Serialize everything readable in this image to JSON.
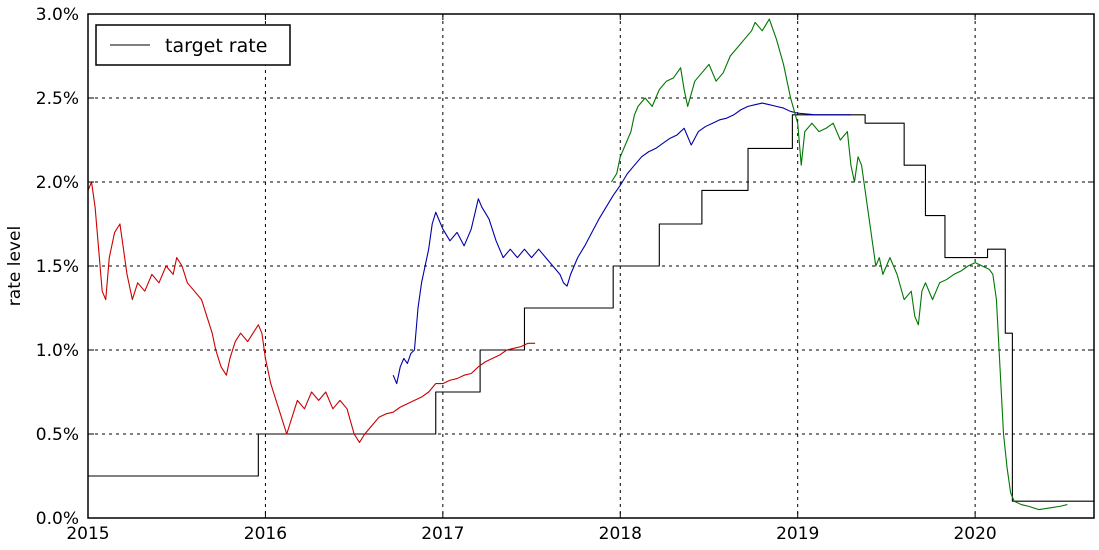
{
  "chart_data": {
    "type": "line",
    "title": "",
    "xlabel": "",
    "ylabel": "rate level",
    "xlim": [
      2015.0,
      2020.67
    ],
    "ylim": [
      0.0,
      3.0
    ],
    "grid": true,
    "legend_position": "top-left",
    "x_ticks": [
      {
        "value": 2015,
        "label": "2015"
      },
      {
        "value": 2016,
        "label": "2016"
      },
      {
        "value": 2017,
        "label": "2017"
      },
      {
        "value": 2018,
        "label": "2018"
      },
      {
        "value": 2019,
        "label": "2019"
      },
      {
        "value": 2020,
        "label": "2020"
      }
    ],
    "y_ticks": [
      {
        "value": 0.0,
        "label": "0.0%"
      },
      {
        "value": 0.5,
        "label": "0.5%"
      },
      {
        "value": 1.0,
        "label": "1.0%"
      },
      {
        "value": 1.5,
        "label": "1.5%"
      },
      {
        "value": 2.0,
        "label": "2.0%"
      },
      {
        "value": 2.5,
        "label": "2.5%"
      },
      {
        "value": 3.0,
        "label": "3.0%"
      }
    ],
    "series": [
      {
        "name": "target rate",
        "color": "#000000",
        "style": "step",
        "points": [
          [
            2015.0,
            0.25
          ],
          [
            2015.96,
            0.25
          ],
          [
            2015.96,
            0.5
          ],
          [
            2016.96,
            0.5
          ],
          [
            2016.96,
            0.75
          ],
          [
            2017.21,
            0.75
          ],
          [
            2017.21,
            1.0
          ],
          [
            2017.46,
            1.0
          ],
          [
            2017.46,
            1.25
          ],
          [
            2017.96,
            1.25
          ],
          [
            2017.96,
            1.5
          ],
          [
            2018.22,
            1.5
          ],
          [
            2018.22,
            1.75
          ],
          [
            2018.46,
            1.75
          ],
          [
            2018.46,
            1.95
          ],
          [
            2018.72,
            1.95
          ],
          [
            2018.72,
            2.2
          ],
          [
            2018.97,
            2.2
          ],
          [
            2018.97,
            2.4
          ],
          [
            2019.38,
            2.4
          ],
          [
            2019.38,
            2.35
          ],
          [
            2019.6,
            2.35
          ],
          [
            2019.6,
            2.1
          ],
          [
            2019.72,
            2.1
          ],
          [
            2019.72,
            1.8
          ],
          [
            2019.83,
            1.8
          ],
          [
            2019.83,
            1.55
          ],
          [
            2020.07,
            1.55
          ],
          [
            2020.07,
            1.6
          ],
          [
            2020.17,
            1.6
          ],
          [
            2020.17,
            1.1
          ],
          [
            2020.21,
            1.1
          ],
          [
            2020.21,
            0.1
          ],
          [
            2020.67,
            0.1
          ]
        ]
      },
      {
        "name": "",
        "color": "#cc0000",
        "style": "line",
        "points": [
          [
            2015.0,
            1.95
          ],
          [
            2015.02,
            2.0
          ],
          [
            2015.04,
            1.85
          ],
          [
            2015.06,
            1.6
          ],
          [
            2015.08,
            1.35
          ],
          [
            2015.1,
            1.3
          ],
          [
            2015.12,
            1.55
          ],
          [
            2015.15,
            1.7
          ],
          [
            2015.18,
            1.75
          ],
          [
            2015.2,
            1.6
          ],
          [
            2015.22,
            1.45
          ],
          [
            2015.25,
            1.3
          ],
          [
            2015.28,
            1.4
          ],
          [
            2015.32,
            1.35
          ],
          [
            2015.36,
            1.45
          ],
          [
            2015.4,
            1.4
          ],
          [
            2015.44,
            1.5
          ],
          [
            2015.48,
            1.45
          ],
          [
            2015.5,
            1.55
          ],
          [
            2015.53,
            1.5
          ],
          [
            2015.56,
            1.4
          ],
          [
            2015.6,
            1.35
          ],
          [
            2015.64,
            1.3
          ],
          [
            2015.67,
            1.2
          ],
          [
            2015.7,
            1.1
          ],
          [
            2015.72,
            1.0
          ],
          [
            2015.75,
            0.9
          ],
          [
            2015.78,
            0.85
          ],
          [
            2015.8,
            0.95
          ],
          [
            2015.83,
            1.05
          ],
          [
            2015.86,
            1.1
          ],
          [
            2015.9,
            1.05
          ],
          [
            2015.93,
            1.1
          ],
          [
            2015.96,
            1.15
          ],
          [
            2015.98,
            1.1
          ],
          [
            2016.0,
            0.95
          ],
          [
            2016.03,
            0.8
          ],
          [
            2016.06,
            0.7
          ],
          [
            2016.09,
            0.6
          ],
          [
            2016.12,
            0.5
          ],
          [
            2016.15,
            0.6
          ],
          [
            2016.18,
            0.7
          ],
          [
            2016.22,
            0.65
          ],
          [
            2016.26,
            0.75
          ],
          [
            2016.3,
            0.7
          ],
          [
            2016.34,
            0.75
          ],
          [
            2016.38,
            0.65
          ],
          [
            2016.42,
            0.7
          ],
          [
            2016.46,
            0.65
          ],
          [
            2016.5,
            0.5
          ],
          [
            2016.53,
            0.45
          ],
          [
            2016.56,
            0.5
          ],
          [
            2016.6,
            0.55
          ],
          [
            2016.64,
            0.6
          ],
          [
            2016.68,
            0.62
          ],
          [
            2016.72,
            0.63
          ],
          [
            2016.76,
            0.66
          ],
          [
            2016.8,
            0.68
          ],
          [
            2016.84,
            0.7
          ],
          [
            2016.88,
            0.72
          ],
          [
            2016.92,
            0.75
          ],
          [
            2016.96,
            0.8
          ],
          [
            2017.0,
            0.8
          ],
          [
            2017.04,
            0.82
          ],
          [
            2017.08,
            0.83
          ],
          [
            2017.12,
            0.85
          ],
          [
            2017.16,
            0.86
          ],
          [
            2017.2,
            0.9
          ],
          [
            2017.24,
            0.93
          ],
          [
            2017.28,
            0.95
          ],
          [
            2017.32,
            0.97
          ],
          [
            2017.36,
            1.0
          ],
          [
            2017.4,
            1.01
          ],
          [
            2017.44,
            1.02
          ],
          [
            2017.48,
            1.04
          ],
          [
            2017.52,
            1.04
          ]
        ]
      },
      {
        "name": "",
        "color": "#0000aa",
        "style": "line",
        "points": [
          [
            2016.72,
            0.85
          ],
          [
            2016.74,
            0.8
          ],
          [
            2016.76,
            0.9
          ],
          [
            2016.78,
            0.95
          ],
          [
            2016.8,
            0.92
          ],
          [
            2016.82,
            0.98
          ],
          [
            2016.84,
            1.0
          ],
          [
            2016.86,
            1.25
          ],
          [
            2016.88,
            1.4
          ],
          [
            2016.9,
            1.5
          ],
          [
            2016.92,
            1.6
          ],
          [
            2016.94,
            1.75
          ],
          [
            2016.96,
            1.82
          ],
          [
            2017.0,
            1.72
          ],
          [
            2017.04,
            1.65
          ],
          [
            2017.08,
            1.7
          ],
          [
            2017.12,
            1.62
          ],
          [
            2017.16,
            1.72
          ],
          [
            2017.2,
            1.9
          ],
          [
            2017.22,
            1.85
          ],
          [
            2017.26,
            1.78
          ],
          [
            2017.3,
            1.65
          ],
          [
            2017.34,
            1.55
          ],
          [
            2017.38,
            1.6
          ],
          [
            2017.42,
            1.55
          ],
          [
            2017.46,
            1.6
          ],
          [
            2017.5,
            1.55
          ],
          [
            2017.54,
            1.6
          ],
          [
            2017.58,
            1.55
          ],
          [
            2017.62,
            1.5
          ],
          [
            2017.66,
            1.45
          ],
          [
            2017.68,
            1.4
          ],
          [
            2017.7,
            1.38
          ],
          [
            2017.72,
            1.45
          ],
          [
            2017.76,
            1.55
          ],
          [
            2017.8,
            1.62
          ],
          [
            2017.84,
            1.7
          ],
          [
            2017.88,
            1.78
          ],
          [
            2017.92,
            1.85
          ],
          [
            2017.96,
            1.92
          ],
          [
            2018.0,
            1.98
          ],
          [
            2018.04,
            2.05
          ],
          [
            2018.08,
            2.1
          ],
          [
            2018.12,
            2.15
          ],
          [
            2018.16,
            2.18
          ],
          [
            2018.2,
            2.2
          ],
          [
            2018.24,
            2.23
          ],
          [
            2018.28,
            2.26
          ],
          [
            2018.32,
            2.28
          ],
          [
            2018.36,
            2.32
          ],
          [
            2018.4,
            2.22
          ],
          [
            2018.44,
            2.3
          ],
          [
            2018.48,
            2.33
          ],
          [
            2018.52,
            2.35
          ],
          [
            2018.56,
            2.37
          ],
          [
            2018.6,
            2.38
          ],
          [
            2018.64,
            2.4
          ],
          [
            2018.68,
            2.43
          ],
          [
            2018.72,
            2.45
          ],
          [
            2018.76,
            2.46
          ],
          [
            2018.8,
            2.47
          ],
          [
            2018.84,
            2.46
          ],
          [
            2018.88,
            2.45
          ],
          [
            2018.92,
            2.44
          ],
          [
            2018.96,
            2.42
          ],
          [
            2019.0,
            2.41
          ],
          [
            2019.1,
            2.4
          ],
          [
            2019.2,
            2.4
          ],
          [
            2019.3,
            2.4
          ]
        ]
      },
      {
        "name": "",
        "color": "#007700",
        "style": "line",
        "points": [
          [
            2017.95,
            2.0
          ],
          [
            2017.98,
            2.05
          ],
          [
            2018.0,
            2.15
          ],
          [
            2018.04,
            2.25
          ],
          [
            2018.06,
            2.3
          ],
          [
            2018.08,
            2.4
          ],
          [
            2018.1,
            2.45
          ],
          [
            2018.14,
            2.5
          ],
          [
            2018.18,
            2.45
          ],
          [
            2018.22,
            2.55
          ],
          [
            2018.26,
            2.6
          ],
          [
            2018.3,
            2.62
          ],
          [
            2018.34,
            2.68
          ],
          [
            2018.36,
            2.55
          ],
          [
            2018.38,
            2.45
          ],
          [
            2018.42,
            2.6
          ],
          [
            2018.46,
            2.65
          ],
          [
            2018.5,
            2.7
          ],
          [
            2018.54,
            2.6
          ],
          [
            2018.58,
            2.65
          ],
          [
            2018.62,
            2.75
          ],
          [
            2018.66,
            2.8
          ],
          [
            2018.7,
            2.85
          ],
          [
            2018.74,
            2.9
          ],
          [
            2018.76,
            2.95
          ],
          [
            2018.8,
            2.9
          ],
          [
            2018.84,
            2.97
          ],
          [
            2018.88,
            2.85
          ],
          [
            2018.92,
            2.7
          ],
          [
            2018.96,
            2.5
          ],
          [
            2019.0,
            2.35
          ],
          [
            2019.02,
            2.1
          ],
          [
            2019.04,
            2.3
          ],
          [
            2019.08,
            2.35
          ],
          [
            2019.12,
            2.3
          ],
          [
            2019.16,
            2.32
          ],
          [
            2019.2,
            2.35
          ],
          [
            2019.24,
            2.25
          ],
          [
            2019.28,
            2.3
          ],
          [
            2019.3,
            2.1
          ],
          [
            2019.32,
            2.0
          ],
          [
            2019.34,
            2.15
          ],
          [
            2019.36,
            2.1
          ],
          [
            2019.38,
            1.95
          ],
          [
            2019.4,
            1.8
          ],
          [
            2019.42,
            1.65
          ],
          [
            2019.44,
            1.5
          ],
          [
            2019.46,
            1.55
          ],
          [
            2019.48,
            1.45
          ],
          [
            2019.5,
            1.5
          ],
          [
            2019.52,
            1.55
          ],
          [
            2019.56,
            1.45
          ],
          [
            2019.6,
            1.3
          ],
          [
            2019.64,
            1.35
          ],
          [
            2019.66,
            1.2
          ],
          [
            2019.68,
            1.15
          ],
          [
            2019.7,
            1.35
          ],
          [
            2019.72,
            1.4
          ],
          [
            2019.76,
            1.3
          ],
          [
            2019.78,
            1.35
          ],
          [
            2019.8,
            1.4
          ],
          [
            2019.84,
            1.42
          ],
          [
            2019.88,
            1.45
          ],
          [
            2019.92,
            1.47
          ],
          [
            2019.96,
            1.5
          ],
          [
            2020.0,
            1.52
          ],
          [
            2020.04,
            1.5
          ],
          [
            2020.08,
            1.48
          ],
          [
            2020.1,
            1.45
          ],
          [
            2020.12,
            1.3
          ],
          [
            2020.14,
            0.9
          ],
          [
            2020.16,
            0.5
          ],
          [
            2020.18,
            0.3
          ],
          [
            2020.2,
            0.15
          ],
          [
            2020.22,
            0.1
          ],
          [
            2020.26,
            0.08
          ],
          [
            2020.3,
            0.07
          ],
          [
            2020.36,
            0.05
          ],
          [
            2020.42,
            0.06
          ],
          [
            2020.48,
            0.07
          ],
          [
            2020.52,
            0.08
          ]
        ]
      }
    ]
  }
}
